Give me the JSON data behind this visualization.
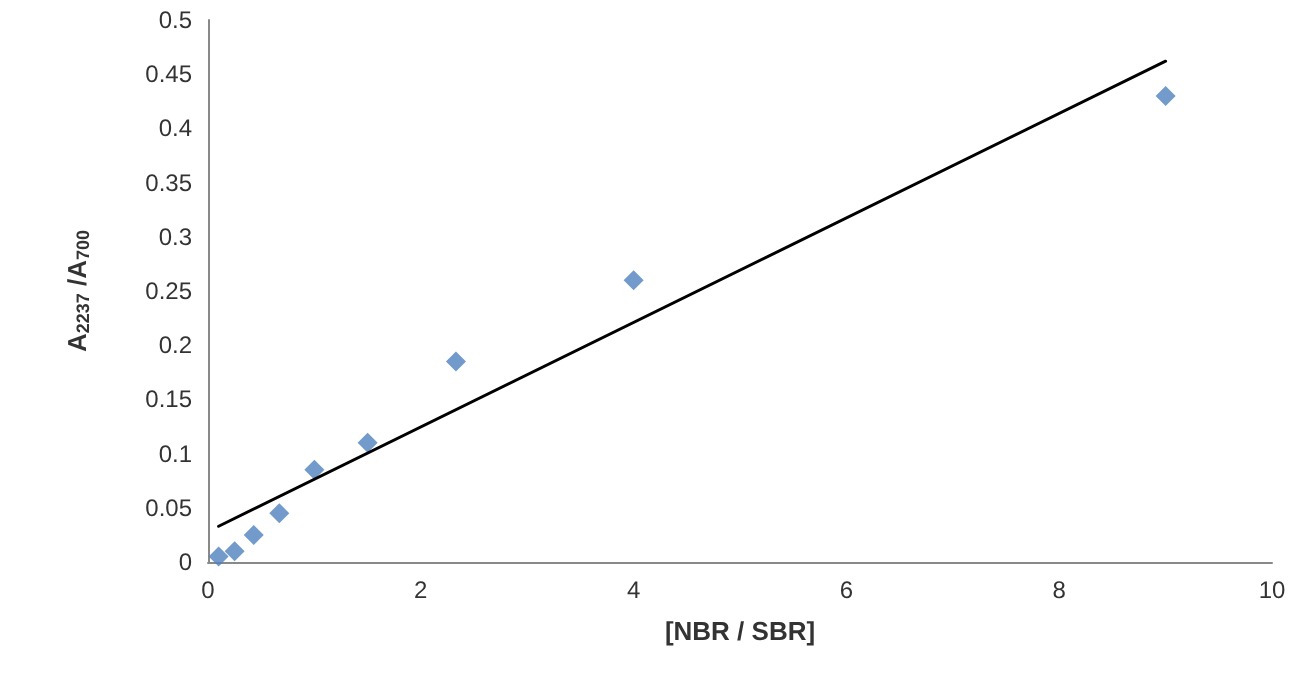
{
  "chart_data": {
    "type": "scatter",
    "xlabel": "[NBR / SBR]",
    "ylabel": "A$_{2237}$ /A$_{700}$",
    "series": [
      {
        "color": "#4f81bd",
        "marker": "diamond",
        "x": [
          0.1,
          0.25,
          0.43,
          0.67,
          1.0,
          1.5,
          2.33,
          4.0,
          9.0
        ],
        "values": [
          0.005,
          0.01,
          0.025,
          0.045,
          0.085,
          0.11,
          0.185,
          0.26,
          0.43
        ]
      },
      {
        "type": "line",
        "color": "#000000",
        "marker": "none",
        "line_style": "solid",
        "x": [
          0.1,
          9.0
        ],
        "values": [
          0.033,
          0.462
        ]
      }
    ],
    "xlim": [
      0,
      10
    ],
    "xticks": [
      0,
      2,
      4,
      6,
      8,
      10
    ],
    "ylim": [
      0,
      0.5
    ],
    "yticks": [
      0,
      0.05,
      0.1,
      0.15,
      0.2,
      0.25,
      0.3,
      0.35,
      0.4,
      0.45,
      0.5
    ],
    "grid": false
  }
}
